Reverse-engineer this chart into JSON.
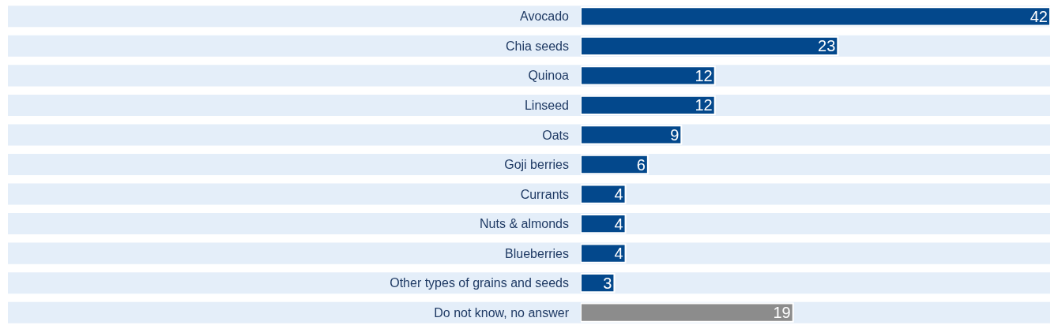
{
  "chart_data": {
    "type": "bar",
    "orientation": "horizontal",
    "categories": [
      "Avocado",
      "Chia seeds",
      "Quinoa",
      "Linseed",
      "Oats",
      "Goji berries",
      "Currants",
      "Nuts & almonds",
      "Blueberries",
      "Other types of grains and seeds",
      "Do not know, no answer"
    ],
    "values": [
      42,
      23,
      12,
      12,
      9,
      6,
      4,
      4,
      4,
      3,
      19
    ],
    "colors": [
      "#03488c",
      "#03488c",
      "#03488c",
      "#03488c",
      "#03488c",
      "#03488c",
      "#03488c",
      "#03488c",
      "#03488c",
      "#03488c",
      "#8c8c8c"
    ],
    "xlim": [
      0,
      42
    ],
    "data_labels": true,
    "tick_labels": "y",
    "grid": false,
    "legend": false
  }
}
